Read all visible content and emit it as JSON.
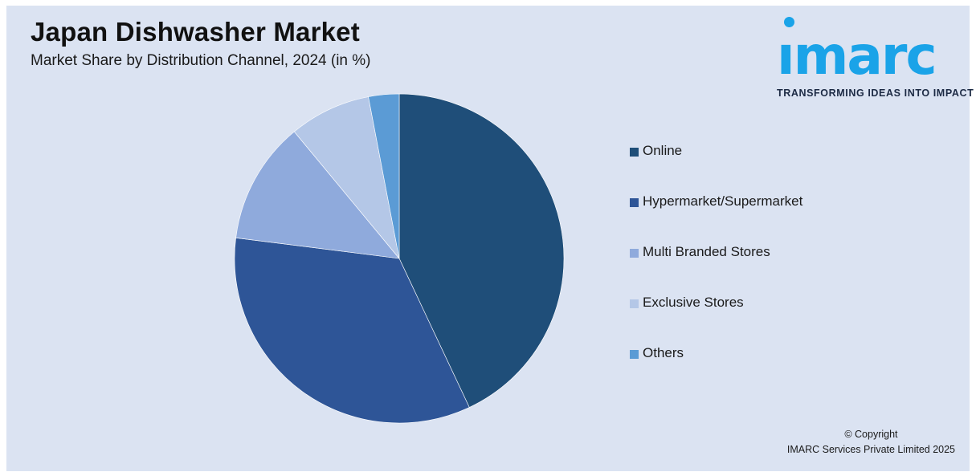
{
  "header": {
    "title": "Japan Dishwasher Market",
    "subtitle": "Market Share by Distribution Channel, 2024 (in %)"
  },
  "logo": {
    "word": "ımarc",
    "tagline": "TRANSFORMING IDEAS INTO IMPACT",
    "color": "#1aa3e8"
  },
  "chart_data": {
    "type": "pie",
    "title": "Japan Dishwasher Market",
    "subtitle": "Market Share by Distribution Channel, 2024 (in %)",
    "categories": [
      "Online",
      "Hypermarket/Supermarket",
      "Multi Branded Stores",
      "Exclusive Stores",
      "Others"
    ],
    "values": [
      43,
      34,
      12,
      8,
      3
    ],
    "colors": [
      "#1f4e79",
      "#2e5597",
      "#8faadc",
      "#b4c7e7",
      "#5b9bd5"
    ],
    "start_angle": "12 o'clock",
    "direction": "clockwise",
    "legend_position": "right"
  },
  "footer": {
    "copyright_line1": "© Copyright",
    "copyright_line2": "IMARC Services Private Limited 2025"
  }
}
